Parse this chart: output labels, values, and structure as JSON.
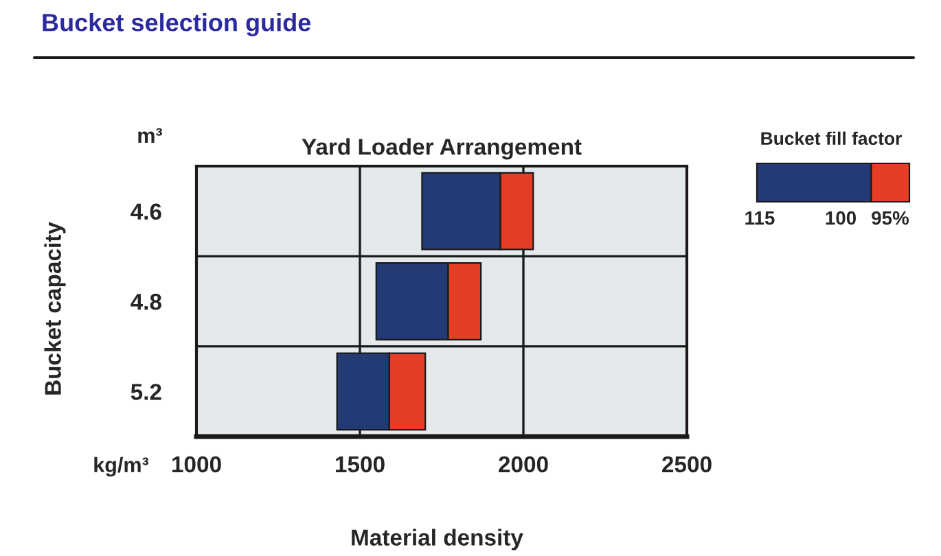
{
  "chart_data": {
    "type": "bar",
    "orientation": "horizontal",
    "title": "Bucket selection guide",
    "subtitle": "Yard Loader Arrangement",
    "xlabel": "Material density",
    "ylabel": "Bucket capacity",
    "legend_title": "Bucket fill factor",
    "categories": [
      "4.6",
      "4.8",
      "5.2"
    ],
    "series": [
      {
        "color": "#243a75",
        "base": [
          1690,
          1550,
          1430
        ],
        "values": [
          240,
          220,
          160
        ]
      },
      {
        "color": "#e63e26",
        "base": [
          1930,
          1770,
          1590
        ],
        "values": [
          100,
          100,
          110
        ]
      }
    ],
    "xlim": [
      1000,
      2500
    ],
    "xticks": [
      1000,
      1500,
      2000,
      2500
    ],
    "grid": true,
    "annotations": [
      "m³",
      "kg/m³",
      "115",
      "100",
      "95%"
    ]
  }
}
